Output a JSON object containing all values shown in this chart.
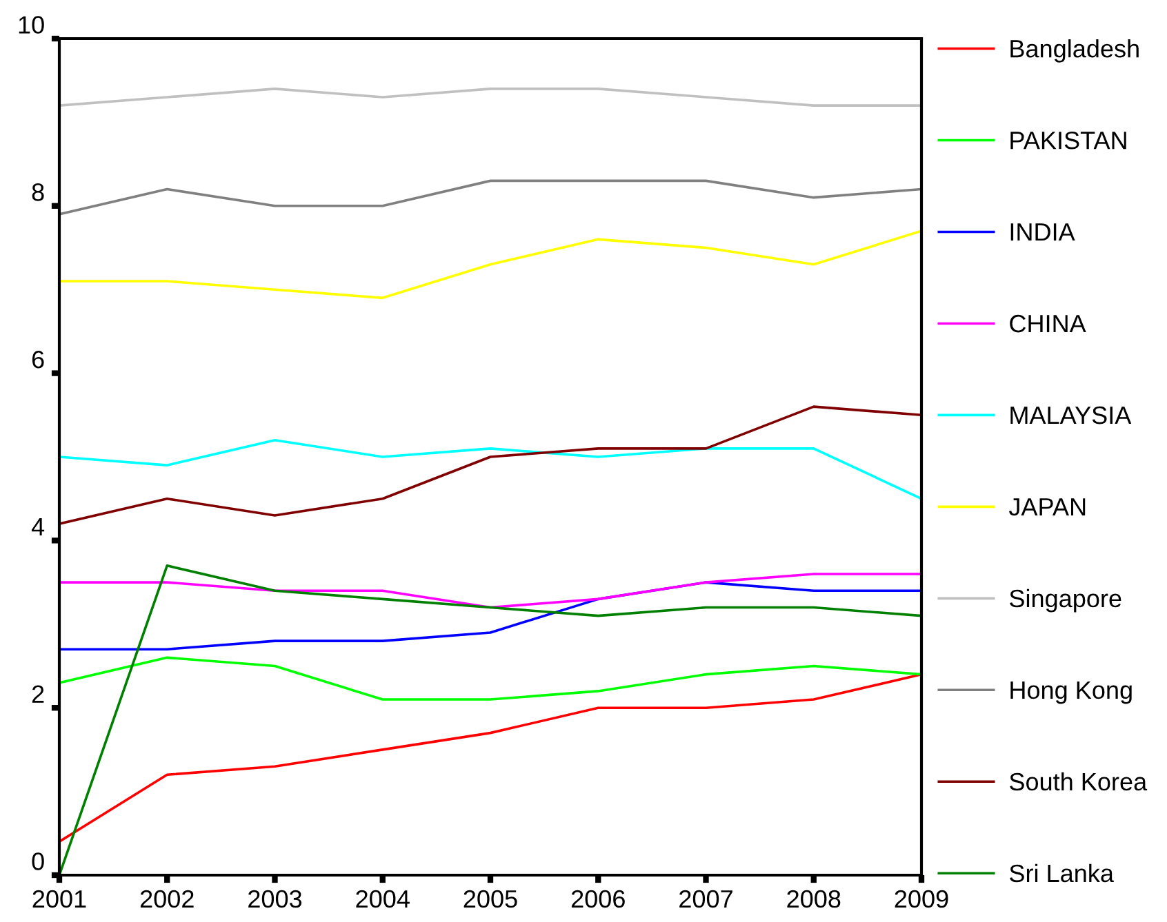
{
  "chart_data": {
    "type": "line",
    "x": [
      2001,
      2002,
      2003,
      2004,
      2005,
      2006,
      2007,
      2008,
      2009
    ],
    "xlim": [
      2001,
      2009
    ],
    "xticks": [
      2001,
      2002,
      2003,
      2004,
      2005,
      2006,
      2007,
      2008,
      2009
    ],
    "ylim": [
      0,
      10
    ],
    "yticks": [
      0,
      2,
      4,
      6,
      8,
      10
    ],
    "grid": false,
    "legend": "right",
    "line_style": "solid",
    "marker": "none",
    "series": [
      {
        "name": "Bangladesh",
        "color": "#ff0000",
        "values": [
          0.4,
          1.2,
          1.3,
          1.5,
          1.7,
          2.0,
          2.0,
          2.1,
          2.4
        ]
      },
      {
        "name": "PAKISTAN",
        "color": "#00ff00",
        "values": [
          2.3,
          2.6,
          2.5,
          2.1,
          2.1,
          2.2,
          2.4,
          2.5,
          2.4
        ]
      },
      {
        "name": "INDIA",
        "color": "#0000ff",
        "values": [
          2.7,
          2.7,
          2.8,
          2.8,
          2.9,
          3.3,
          3.5,
          3.4,
          3.4
        ]
      },
      {
        "name": "CHINA",
        "color": "#ff00ff",
        "values": [
          3.5,
          3.5,
          3.4,
          3.4,
          3.2,
          3.3,
          3.5,
          3.6,
          3.6
        ]
      },
      {
        "name": "MALAYSIA",
        "color": "#00ffff",
        "values": [
          5.0,
          4.9,
          5.2,
          5.0,
          5.1,
          5.0,
          5.1,
          5.1,
          4.5
        ]
      },
      {
        "name": "JAPAN",
        "color": "#ffff00",
        "values": [
          7.1,
          7.1,
          7.0,
          6.9,
          7.3,
          7.6,
          7.5,
          7.3,
          7.7
        ]
      },
      {
        "name": "Singapore",
        "color": "#c0c0c0",
        "values": [
          9.2,
          9.3,
          9.4,
          9.3,
          9.4,
          9.4,
          9.3,
          9.2,
          9.2
        ]
      },
      {
        "name": "Hong Kong",
        "color": "#808080",
        "values": [
          7.9,
          8.2,
          8.0,
          8.0,
          8.3,
          8.3,
          8.3,
          8.1,
          8.2
        ]
      },
      {
        "name": "South Korea",
        "color": "#800000",
        "values": [
          4.2,
          4.5,
          4.3,
          4.5,
          5.0,
          5.1,
          5.1,
          5.6,
          5.5
        ]
      },
      {
        "name": "Sri Lanka",
        "color": "#008000",
        "values": [
          0.0,
          3.7,
          3.4,
          3.3,
          3.2,
          3.1,
          3.2,
          3.2,
          3.1
        ]
      }
    ]
  }
}
